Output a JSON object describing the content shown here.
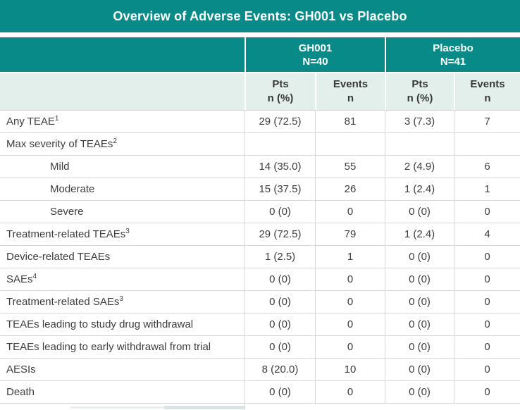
{
  "title": "Overview of Adverse Events: GH001 vs Placebo",
  "colors": {
    "teal": "#088b88",
    "header_text": "#ffffff",
    "subheader_bg": "#e3efeb",
    "subheader_text": "#383838",
    "body_text": "#3d3d3d",
    "row_border": "#d9d9d9",
    "grid_line": "#cfcfcf"
  },
  "table": {
    "groups": [
      {
        "name": "GH001",
        "n": "N=40"
      },
      {
        "name": "Placebo",
        "n": "N=41"
      }
    ],
    "subheaders": [
      {
        "line1": "Pts",
        "line2": "n (%)"
      },
      {
        "line1": "Events",
        "line2": "n"
      },
      {
        "line1": "Pts",
        "line2": "n (%)"
      },
      {
        "line1": "Events",
        "line2": "n"
      }
    ],
    "rows": [
      {
        "label": "Any TEAE",
        "sup": "1",
        "indent": false,
        "values": [
          "29 (72.5)",
          "81",
          "3 (7.3)",
          "7"
        ]
      },
      {
        "label": "Max severity of TEAEs",
        "sup": "2",
        "indent": false,
        "values": [
          "",
          "",
          "",
          ""
        ]
      },
      {
        "label": "Mild",
        "sup": "",
        "indent": true,
        "values": [
          "14 (35.0)",
          "55",
          "2 (4.9)",
          "6"
        ]
      },
      {
        "label": "Moderate",
        "sup": "",
        "indent": true,
        "values": [
          "15 (37.5)",
          "26",
          "1 (2.4)",
          "1"
        ]
      },
      {
        "label": "Severe",
        "sup": "",
        "indent": true,
        "values": [
          "0 (0)",
          "0",
          "0 (0)",
          "0"
        ]
      },
      {
        "label": "Treatment-related TEAEs",
        "sup": "3",
        "indent": false,
        "values": [
          "29 (72.5)",
          "79",
          "1 (2.4)",
          "4"
        ]
      },
      {
        "label": "Device-related TEAEs",
        "sup": "",
        "indent": false,
        "values": [
          "1 (2.5)",
          "1",
          "0 (0)",
          "0"
        ]
      },
      {
        "label": "SAEs",
        "sup": "4",
        "indent": false,
        "values": [
          "0 (0)",
          "0",
          "0 (0)",
          "0"
        ]
      },
      {
        "label": "Treatment-related SAEs",
        "sup": "3",
        "indent": false,
        "values": [
          "0 (0)",
          "0",
          "0 (0)",
          "0"
        ]
      },
      {
        "label": "TEAEs leading to study drug withdrawal",
        "sup": "",
        "indent": false,
        "values": [
          "0 (0)",
          "0",
          "0 (0)",
          "0"
        ]
      },
      {
        "label": "TEAEs leading to early withdrawal from trial",
        "sup": "",
        "indent": false,
        "values": [
          "0 (0)",
          "0",
          "0 (0)",
          "0"
        ]
      },
      {
        "label": "AESIs",
        "sup": "",
        "indent": false,
        "values": [
          "8 (20.0)",
          "10",
          "0 (0)",
          "0"
        ]
      },
      {
        "label": "Death",
        "sup": "",
        "indent": false,
        "values": [
          "0 (0)",
          "0",
          "0 (0)",
          "0"
        ]
      }
    ]
  },
  "chart_data": {
    "type": "table",
    "title": "Overview of Adverse Events: GH001 vs Placebo",
    "column_groups": [
      "GH001 N=40",
      "Placebo N=41"
    ],
    "columns": [
      "",
      "GH001 Pts n (%)",
      "GH001 Events n",
      "Placebo Pts n (%)",
      "Placebo Events n"
    ],
    "rows": [
      [
        "Any TEAE¹",
        "29 (72.5)",
        "81",
        "3 (7.3)",
        "7"
      ],
      [
        "Max severity of TEAEs²",
        "",
        "",
        "",
        ""
      ],
      [
        "Mild",
        "14 (35.0)",
        "55",
        "2 (4.9)",
        "6"
      ],
      [
        "Moderate",
        "15 (37.5)",
        "26",
        "1 (2.4)",
        "1"
      ],
      [
        "Severe",
        "0 (0)",
        "0",
        "0 (0)",
        "0"
      ],
      [
        "Treatment-related TEAEs³",
        "29 (72.5)",
        "79",
        "1 (2.4)",
        "4"
      ],
      [
        "Device-related TEAEs",
        "1 (2.5)",
        "1",
        "0 (0)",
        "0"
      ],
      [
        "SAEs⁴",
        "0 (0)",
        "0",
        "0 (0)",
        "0"
      ],
      [
        "Treatment-related SAEs³",
        "0 (0)",
        "0",
        "0 (0)",
        "0"
      ],
      [
        "TEAEs leading to study drug withdrawal",
        "0 (0)",
        "0",
        "0 (0)",
        "0"
      ],
      [
        "TEAEs leading to early withdrawal from trial",
        "0 (0)",
        "0",
        "0 (0)",
        "0"
      ],
      [
        "AESIs",
        "8 (20.0)",
        "10",
        "0 (0)",
        "0"
      ],
      [
        "Death",
        "0 (0)",
        "0",
        "0 (0)",
        "0"
      ]
    ]
  }
}
